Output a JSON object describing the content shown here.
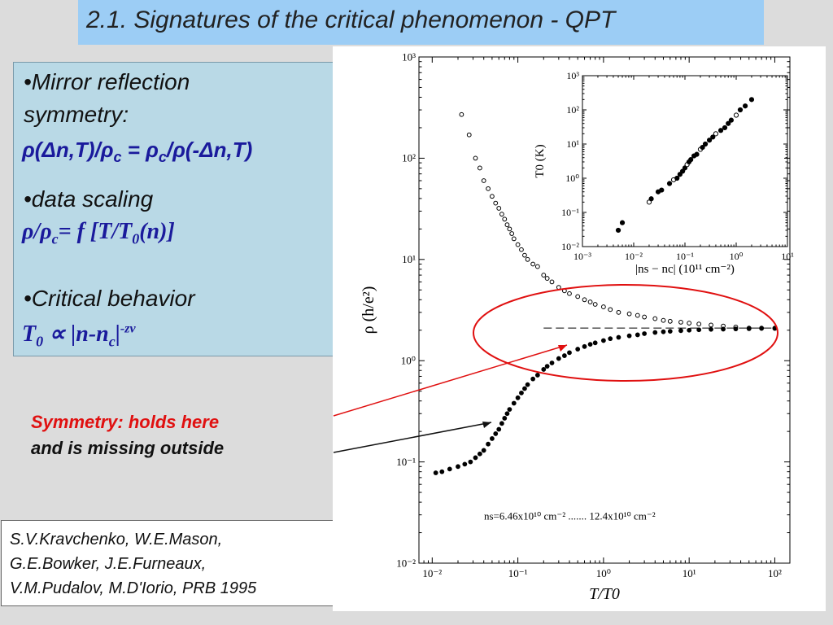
{
  "title": "2.1. Signatures of the  critical phenomenon - QPT",
  "panel": {
    "bullet1_a": "•Mirror reflection",
    "bullet1_b": "symmetry:",
    "formula1": "ρ(Δn,T)/ρc = ρc/ρ(-Δn,T)",
    "bullet2": "•data scaling",
    "formula2": "ρ/ρc= f [T/T0(n)]",
    "bullet3": "•Critical behavior",
    "formula3": "T0 ∝ |n-nc|-zν"
  },
  "notes": {
    "red": "Symmetry: holds here",
    "black": "and  is missing outside"
  },
  "reference": {
    "lines": [
      "S.V.Kravchenko, W.E.Mason,",
      "G.E.Bowker, J.E.Furneaux,",
      "V.M.Pudalov, M.D'Iorio, PRB 1995"
    ]
  },
  "colors": {
    "title_bg": "#9ccdf5",
    "panel_bg": "#b9d9e6",
    "accent_red": "#e01010",
    "formula_blue": "#1a1a9c"
  },
  "chart_data": [
    {
      "type": "scatter",
      "xlabel": "T/T0",
      "ylabel": "ρ (h/e²)",
      "xscale": "log",
      "yscale": "log",
      "xlim": [
        0.007,
        150
      ],
      "ylim": [
        0.01,
        1000
      ],
      "x_ticks": [
        "10⁻²",
        "10⁻¹",
        "10⁰",
        "10¹",
        "10²"
      ],
      "y_ticks": [
        "10⁻²",
        "10⁻¹",
        "10⁰",
        "10¹",
        "10²",
        "10³"
      ],
      "annotation": "ns=6.46x10¹⁰ cm⁻² ....... 12.4x10¹⁰ cm⁻²",
      "critical_line_y": 2.1,
      "series": [
        {
          "marker": "open",
          "x": [
            0.022,
            0.027,
            0.032,
            0.036,
            0.04,
            0.045,
            0.05,
            0.055,
            0.06,
            0.065,
            0.07,
            0.075,
            0.08,
            0.085,
            0.09,
            0.1,
            0.11,
            0.12,
            0.13,
            0.15,
            0.17,
            0.2,
            0.22,
            0.25,
            0.3,
            0.35,
            0.4,
            0.5,
            0.6,
            0.7,
            0.8,
            1.0,
            1.2,
            1.5,
            2,
            2.5,
            3,
            4,
            5,
            6,
            8,
            10,
            13,
            18,
            25,
            35,
            50,
            70,
            100
          ],
          "y": [
            270,
            170,
            100,
            80,
            60,
            50,
            42,
            36,
            32,
            28,
            25,
            22,
            20,
            18,
            16,
            14,
            12.5,
            11,
            10,
            9,
            8.5,
            7,
            6.5,
            6,
            5.3,
            4.9,
            4.6,
            4.3,
            4.0,
            3.8,
            3.6,
            3.4,
            3.2,
            3.0,
            2.9,
            2.8,
            2.7,
            2.6,
            2.5,
            2.45,
            2.4,
            2.35,
            2.3,
            2.25,
            2.2,
            2.15,
            2.1,
            2.1,
            2.1
          ]
        },
        {
          "marker": "filled",
          "x": [
            0.011,
            0.013,
            0.016,
            0.02,
            0.024,
            0.028,
            0.032,
            0.036,
            0.04,
            0.045,
            0.05,
            0.055,
            0.06,
            0.065,
            0.07,
            0.075,
            0.08,
            0.09,
            0.1,
            0.11,
            0.12,
            0.13,
            0.15,
            0.17,
            0.2,
            0.22,
            0.25,
            0.3,
            0.35,
            0.4,
            0.5,
            0.6,
            0.7,
            0.8,
            1.0,
            1.2,
            1.5,
            2,
            2.5,
            3,
            4,
            5,
            6,
            8,
            10,
            13,
            18,
            25,
            35,
            50,
            70,
            100
          ],
          "y": [
            0.078,
            0.08,
            0.085,
            0.09,
            0.095,
            0.1,
            0.11,
            0.12,
            0.13,
            0.15,
            0.17,
            0.19,
            0.21,
            0.24,
            0.27,
            0.3,
            0.33,
            0.38,
            0.43,
            0.48,
            0.53,
            0.58,
            0.66,
            0.72,
            0.82,
            0.88,
            0.95,
            1.05,
            1.12,
            1.2,
            1.3,
            1.38,
            1.45,
            1.5,
            1.58,
            1.65,
            1.7,
            1.76,
            1.8,
            1.85,
            1.9,
            1.93,
            1.95,
            1.98,
            2.0,
            2.02,
            2.04,
            2.05,
            2.06,
            2.07,
            2.08,
            2.08
          ]
        }
      ]
    },
    {
      "type": "scatter",
      "xlabel": "|ns − nc| (10¹¹ cm⁻²)",
      "ylabel": "T0 (K)",
      "xscale": "log",
      "yscale": "log",
      "xlim": [
        0.001,
        10
      ],
      "ylim": [
        0.01,
        1000
      ],
      "x_ticks": [
        "10⁻³",
        "10⁻²",
        "10⁻¹",
        "10⁰",
        "10¹"
      ],
      "y_ticks": [
        "10⁻²",
        "10⁻¹",
        "10⁰",
        "10¹",
        "10²",
        "10³"
      ],
      "x": [
        0.005,
        0.006,
        0.02,
        0.022,
        0.03,
        0.035,
        0.05,
        0.06,
        0.07,
        0.08,
        0.09,
        0.1,
        0.11,
        0.12,
        0.13,
        0.15,
        0.17,
        0.2,
        0.22,
        0.25,
        0.3,
        0.35,
        0.4,
        0.5,
        0.6,
        0.7,
        0.8,
        1.0,
        1.2,
        1.5,
        2.0
      ],
      "y": [
        0.03,
        0.05,
        0.2,
        0.25,
        0.4,
        0.45,
        0.7,
        0.9,
        1.0,
        1.3,
        1.6,
        2.0,
        2.5,
        3.0,
        3.5,
        4.5,
        5,
        7,
        8,
        10,
        13,
        16,
        20,
        25,
        30,
        40,
        50,
        70,
        100,
        130,
        200
      ]
    }
  ]
}
